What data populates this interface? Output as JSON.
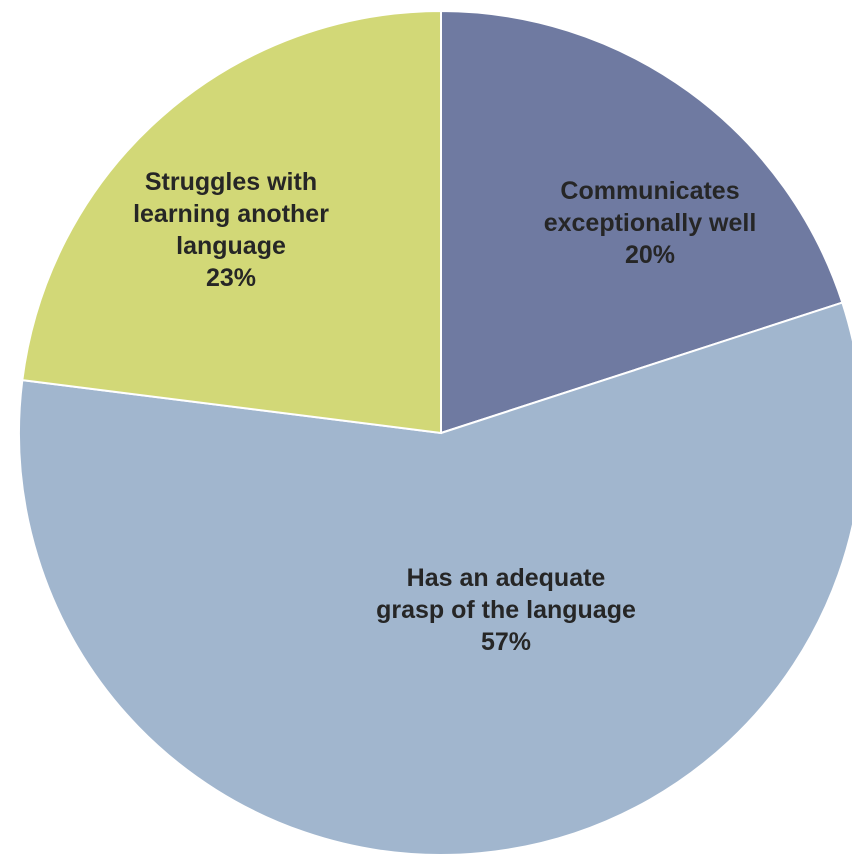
{
  "chart_data": {
    "type": "pie",
    "title": "",
    "slices": [
      {
        "label_lines": [
          "Communicates",
          "exceptionally well"
        ],
        "percent_label": "20%",
        "value": 20,
        "color": "#6f7aa1"
      },
      {
        "label_lines": [
          "Has an adequate",
          "grasp of the language"
        ],
        "percent_label": "57%",
        "value": 57,
        "color": "#a1b6ce"
      },
      {
        "label_lines": [
          "Struggles with",
          "learning another",
          "language"
        ],
        "percent_label": "23%",
        "value": 23,
        "color": "#d2d877"
      }
    ],
    "start_angle_deg": 0,
    "direction": "clockwise",
    "legend": "none"
  }
}
